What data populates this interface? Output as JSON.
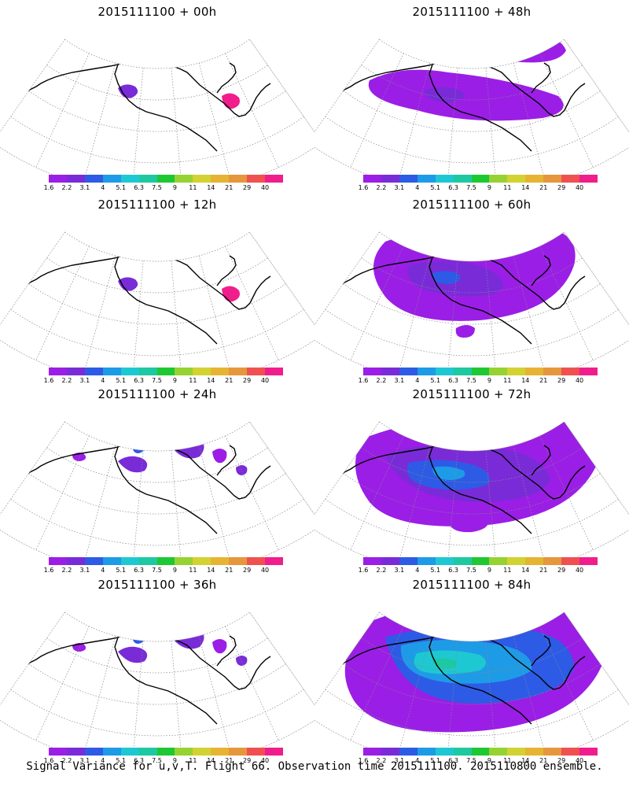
{
  "caption": "Signal Variance for u,v,T. Flight 66. Observation time 2015111100. 2015110800 ensemble.",
  "colorbar": {
    "labels": [
      "1.6",
      "2.2",
      "3.1",
      "4",
      "5.1",
      "6.3",
      "7.5",
      "9",
      "11",
      "14",
      "21",
      "29",
      "40"
    ],
    "colors": [
      "#9b1ee6",
      "#7a2bd8",
      "#2d5be6",
      "#1e9be6",
      "#1ec8d2",
      "#1ec8a0",
      "#1ec832",
      "#96d232",
      "#d2d232",
      "#e6b432",
      "#e6963c",
      "#f05050",
      "#f01e8c"
    ]
  },
  "panels": [
    {
      "title": "2015111100 + 00h",
      "lead": "00h",
      "level": 1
    },
    {
      "title": "2015111100 + 48h",
      "lead": "48h",
      "level": 3
    },
    {
      "title": "2015111100 + 12h",
      "lead": "12h",
      "level": 1
    },
    {
      "title": "2015111100 + 60h",
      "lead": "60h",
      "level": 4
    },
    {
      "title": "2015111100 + 24h",
      "lead": "24h",
      "level": 2
    },
    {
      "title": "2015111100 + 72h",
      "lead": "72h",
      "level": 5
    },
    {
      "title": "2015111100 + 36h",
      "lead": "36h",
      "level": 2
    },
    {
      "title": "2015111100 + 84h",
      "lead": "84h",
      "level": 6
    }
  ]
}
